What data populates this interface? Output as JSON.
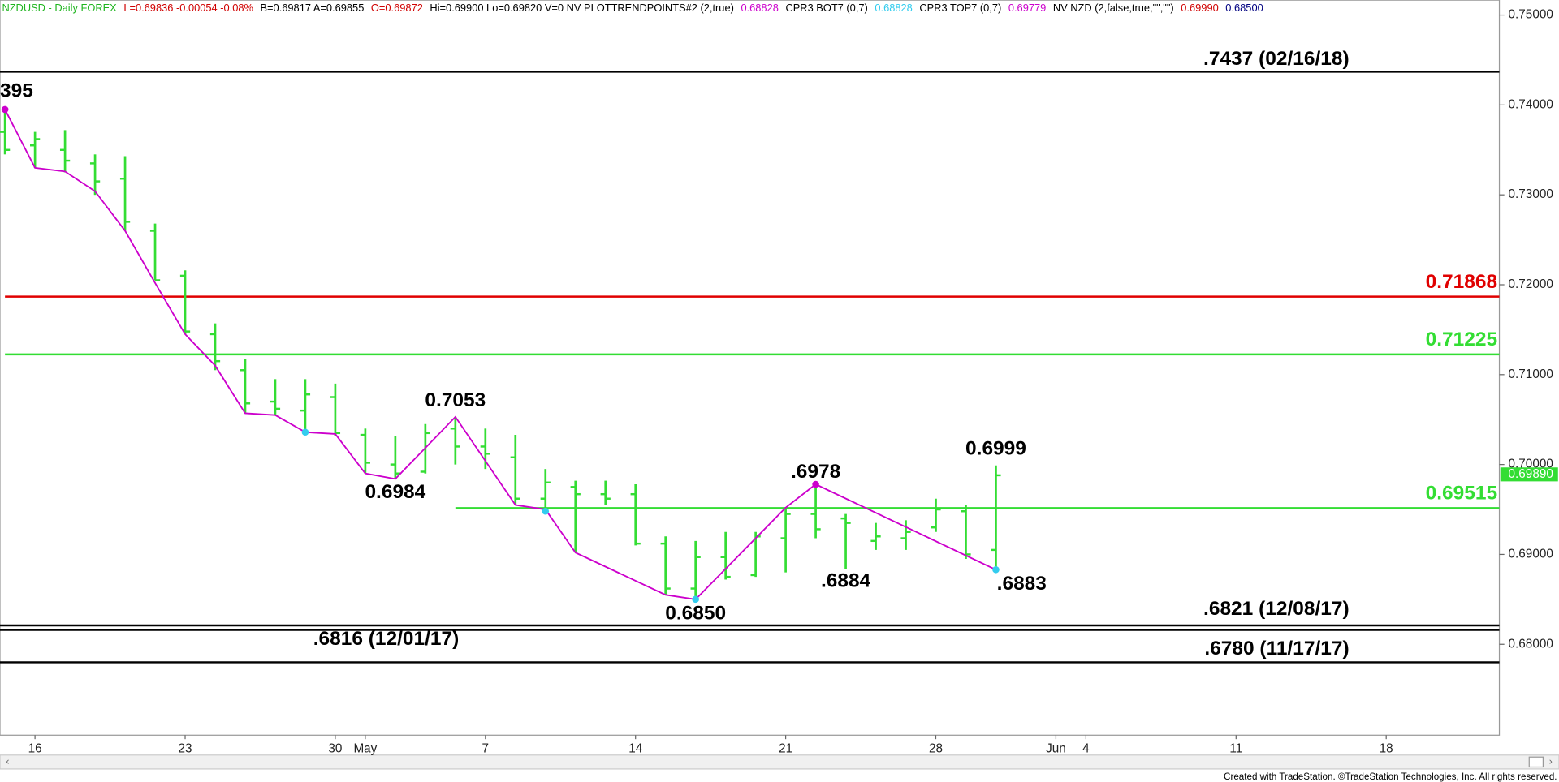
{
  "chart_data": {
    "type": "ohlc",
    "header": [
      {
        "text": "NZDUSD - Daily  FOREX",
        "color": "#1fb51f"
      },
      {
        "text": "L=0.69836  -0.00054  -0.08%",
        "color": "#d00000"
      },
      {
        "text": "B=0.69817  A=0.69855",
        "color": "#000000"
      },
      {
        "text": "O=0.69872",
        "color": "#d00000"
      },
      {
        "text": "Hi=0.69900  Lo=0.69820  V=0  NV  PLOTTRENDPOINTS#2 (2,true)",
        "color": "#000000"
      },
      {
        "text": "0.68828",
        "color": "#cc00cc"
      },
      {
        "text": "CPR3 BOT7 (0,7)",
        "color": "#000000"
      },
      {
        "text": "0.68828",
        "color": "#33ccee"
      },
      {
        "text": "CPR3 TOP7 (0,7)",
        "color": "#000000"
      },
      {
        "text": "0.69779",
        "color": "#cc00cc"
      },
      {
        "text": "NV NZD (2,false,true,\"\",\"\")",
        "color": "#000000"
      },
      {
        "text": "0.69990",
        "color": "#d00000"
      },
      {
        "text": "0.68500",
        "color": "#000080"
      }
    ],
    "x": [
      0,
      1,
      2,
      3,
      4,
      5,
      6,
      7,
      8,
      9,
      10,
      11,
      12,
      13,
      14,
      15,
      16,
      17,
      18,
      19,
      20,
      21,
      22,
      23,
      24,
      25,
      26,
      27,
      28,
      29,
      30,
      31,
      32,
      33
    ],
    "open": [
      0.737,
      0.7355,
      0.735,
      0.7335,
      0.7318,
      0.726,
      0.721,
      0.7145,
      0.7105,
      0.707,
      0.706,
      0.7075,
      0.7033,
      0.7,
      0.6992,
      0.704,
      0.702,
      0.7008,
      0.6962,
      0.6975,
      0.6967,
      0.6967,
      0.6912,
      0.6862,
      0.6897,
      0.6877,
      0.6918,
      0.6945,
      0.694,
      0.6915,
      0.6918,
      0.693,
      0.6948,
      0.6905
    ],
    "high": [
      0.7395,
      0.737,
      0.7372,
      0.7345,
      0.7343,
      0.7268,
      0.7216,
      0.7157,
      0.7117,
      0.7095,
      0.7095,
      0.709,
      0.704,
      0.7032,
      0.7045,
      0.7053,
      0.704,
      0.7033,
      0.6995,
      0.6982,
      0.6982,
      0.6978,
      0.692,
      0.6915,
      0.6925,
      0.6925,
      0.695,
      0.6978,
      0.6945,
      0.6935,
      0.6938,
      0.6962,
      0.6955,
      0.6999
    ],
    "low": [
      0.7345,
      0.733,
      0.7325,
      0.73,
      0.726,
      0.7205,
      0.7145,
      0.7105,
      0.7057,
      0.7055,
      0.7035,
      0.7032,
      0.699,
      0.6984,
      0.699,
      0.7,
      0.6995,
      0.6955,
      0.6945,
      0.6902,
      0.6955,
      0.691,
      0.6855,
      0.685,
      0.6872,
      0.6875,
      0.688,
      0.6918,
      0.6884,
      0.6905,
      0.6905,
      0.6925,
      0.6895,
      0.6883
    ],
    "close": [
      0.735,
      0.7362,
      0.7338,
      0.7315,
      0.727,
      0.7205,
      0.7148,
      0.7115,
      0.7068,
      0.7062,
      0.7078,
      0.7035,
      0.7002,
      0.699,
      0.7035,
      0.702,
      0.7012,
      0.6962,
      0.698,
      0.6967,
      0.6962,
      0.6912,
      0.6862,
      0.6897,
      0.6875,
      0.692,
      0.6945,
      0.6928,
      0.6935,
      0.692,
      0.6925,
      0.695,
      0.69,
      0.6988
    ],
    "color": "#33dd33",
    "xlim": [
      -0.166,
      49.768
    ],
    "xticks": [
      {
        "value": 1,
        "label": "16"
      },
      {
        "value": 6,
        "label": "23"
      },
      {
        "value": 11,
        "label": "30"
      },
      {
        "value": 12,
        "label": "May"
      },
      {
        "value": 16,
        "label": "7"
      },
      {
        "value": 21,
        "label": "14"
      },
      {
        "value": 26,
        "label": "21"
      },
      {
        "value": 31,
        "label": "28"
      },
      {
        "value": 35,
        "label": "Jun"
      },
      {
        "value": 36,
        "label": "4"
      },
      {
        "value": 41,
        "label": "11"
      },
      {
        "value": 46,
        "label": "18"
      }
    ],
    "ylim": [
      0.66989,
      0.75166
    ],
    "yticks": [
      {
        "value": 0.75,
        "label": "0.75000"
      },
      {
        "value": 0.74,
        "label": "0.74000"
      },
      {
        "value": 0.73,
        "label": "0.73000"
      },
      {
        "value": 0.72,
        "label": "0.72000"
      },
      {
        "value": 0.71,
        "label": "0.71000"
      },
      {
        "value": 0.7,
        "label": "0.70000"
      },
      {
        "value": 0.69,
        "label": "0.69000"
      },
      {
        "value": 0.68,
        "label": "0.68000"
      }
    ],
    "last_price": {
      "value": 0.6989,
      "label": "0.69890",
      "color": "#33dd33"
    },
    "trend_line": {
      "color": "#cc00cc",
      "x": [
        0,
        1,
        2,
        3,
        4,
        5,
        6,
        7,
        8,
        9,
        10,
        11,
        12,
        13,
        15,
        17,
        18,
        19,
        22,
        23,
        26,
        27,
        33
      ],
      "values": [
        0.7395,
        0.733,
        0.7326,
        0.7304,
        0.726,
        0.7202,
        0.7145,
        0.711,
        0.7057,
        0.7055,
        0.7036,
        0.7034,
        0.699,
        0.6984,
        0.7053,
        0.6955,
        0.695,
        0.6902,
        0.6855,
        0.685,
        0.6952,
        0.6978,
        0.6883
      ]
    },
    "trend_points": [
      {
        "color": "#cc00cc",
        "x": [
          0,
          27
        ],
        "values": [
          0.7395,
          0.6978
        ]
      },
      {
        "color": "#33ccee",
        "x": [
          10,
          18,
          23,
          33
        ],
        "values": [
          0.7036,
          0.6948,
          0.685,
          0.6883
        ]
      }
    ],
    "levels": [
      {
        "value": 0.7437,
        "label": ".7437 (02/16/18)",
        "color": "#000000"
      },
      {
        "value": 0.71868,
        "label": "0.71868",
        "color": "#e00000",
        "start": 0
      },
      {
        "value": 0.71225,
        "label": "0.71225",
        "color": "#33dd33",
        "start": 0
      },
      {
        "value": 0.69515,
        "label": "0.69515",
        "color": "#33dd33",
        "start": 15
      },
      {
        "value": 0.6821,
        "label": ".6821 (12/08/17)",
        "color": "#000000"
      },
      {
        "value": 0.6816,
        "label": ".6816 (12/01/17)",
        "color": "#000000"
      },
      {
        "value": 0.678,
        "label": ".6780 (11/17/17)",
        "color": "#000000"
      }
    ],
    "annotations": [
      {
        "label": "395",
        "x": 0,
        "value": 0.7395
      },
      {
        "label": "0.7053",
        "x": 15,
        "value": 0.7053
      },
      {
        "label": "0.6984",
        "x": 13,
        "value": 0.6984
      },
      {
        "label": "0.6850",
        "x": 23,
        "value": 0.685
      },
      {
        "label": ".6978",
        "x": 27,
        "value": 0.6978
      },
      {
        "label": ".6884",
        "x": 28,
        "value": 0.6884
      },
      {
        "label": "0.6999",
        "x": 33,
        "value": 0.6999
      },
      {
        "label": ".6883",
        "x": 33,
        "value": 0.6883
      }
    ],
    "footer": "Created with TradeStation. ©TradeStation Technologies, Inc. All rights reserved."
  }
}
